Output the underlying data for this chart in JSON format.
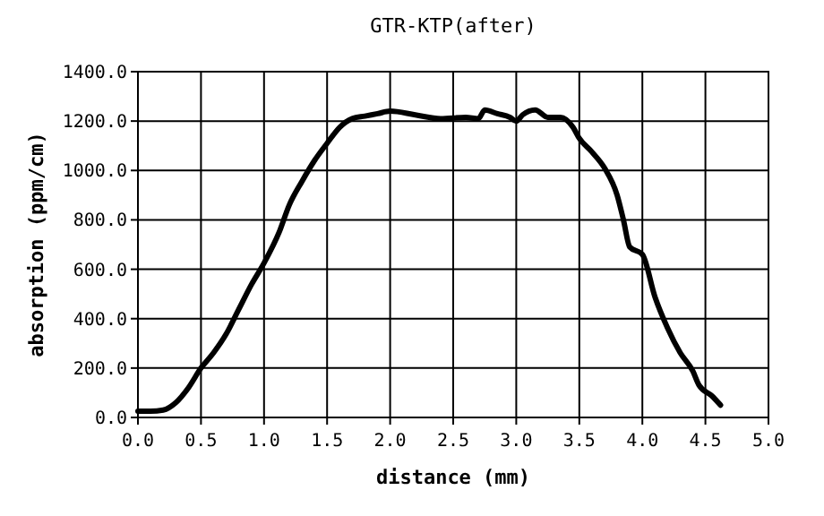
{
  "chart_data": {
    "type": "line",
    "title": "GTR-KTP(after)",
    "xlabel": "distance (mm)",
    "ylabel": "absorption (ppm/cm)",
    "x": [
      0,
      0.1,
      0.2,
      0.3,
      0.4,
      0.5,
      0.6,
      0.7,
      0.8,
      0.9,
      1.0,
      1.12,
      1.2,
      1.3,
      1.4,
      1.5,
      1.6,
      1.7,
      1.8,
      1.9,
      2.0,
      2.2,
      2.4,
      2.6,
      2.7,
      2.75,
      2.85,
      2.95,
      3.0,
      3.05,
      3.15,
      3.25,
      3.35,
      3.45,
      3.5,
      3.6,
      3.7,
      3.8,
      3.85,
      3.9,
      4.0,
      4.1,
      4.2,
      4.3,
      4.4,
      4.45,
      4.55,
      4.62
    ],
    "series": [
      {
        "color": "#000000",
        "values": [
          25,
          25,
          30,
          60,
          120,
          200,
          262,
          338,
          438,
          538,
          625,
          750,
          860,
          955,
          1040,
          1110,
          1175,
          1210,
          1220,
          1230,
          1240,
          1225,
          1210,
          1215,
          1210,
          1245,
          1230,
          1215,
          1200,
          1225,
          1245,
          1215,
          1215,
          1175,
          1130,
          1075,
          1010,
          900,
          800,
          690,
          660,
          488,
          362,
          262,
          188,
          130,
          88,
          50
        ]
      }
    ],
    "xlim": [
      0,
      5
    ],
    "ylim": [
      0,
      1400
    ],
    "xticks": [
      {
        "value": 0,
        "label": "0.0"
      },
      0.5,
      {
        "value": 1,
        "label": "1.0"
      },
      1.5,
      {
        "value": 2,
        "label": "2.0"
      },
      2.5,
      {
        "value": 3,
        "label": "3.0"
      },
      3.5,
      {
        "value": 4,
        "label": "4.0"
      },
      4.5,
      {
        "value": 5,
        "label": "5.0"
      }
    ],
    "yticks": [
      {
        "value": 0,
        "label": "0.0"
      },
      {
        "value": 200,
        "label": "200.0"
      },
      {
        "value": 400,
        "label": "400.0"
      },
      {
        "value": 600,
        "label": "600.0"
      },
      {
        "value": 800,
        "label": "800.0"
      },
      {
        "value": 1000,
        "label": "1000.0"
      },
      {
        "value": 1200,
        "label": "1200.0"
      },
      {
        "value": 1400,
        "label": "1400.0"
      }
    ],
    "grid": true,
    "marker": "none",
    "line_style": "solid"
  }
}
